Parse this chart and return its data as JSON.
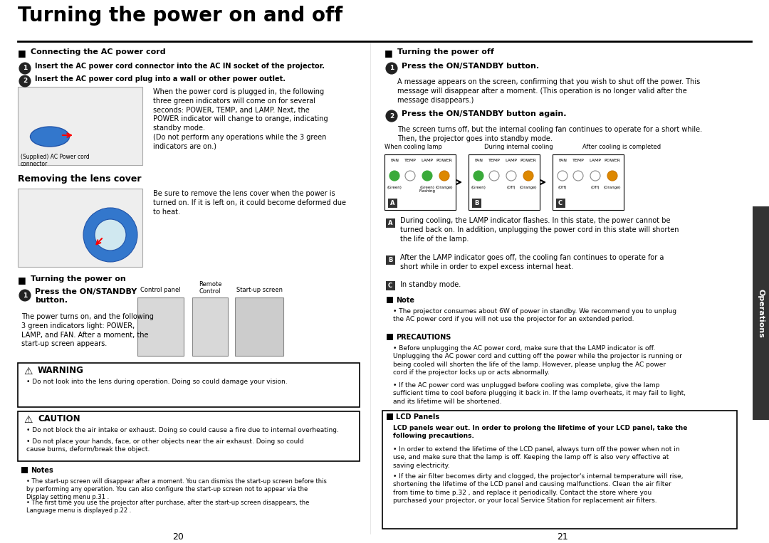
{
  "title": "Turning the power on and off",
  "bg_color": "#ffffff",
  "text_color": "#000000",
  "sections": {
    "connecting_header": "Connecting the AC power cord",
    "connecting_step1": "Insert the AC power cord connector into the AC IN socket of the projector.",
    "connecting_step2": "Insert the AC power cord plug into a wall or other power outlet.",
    "connecting_body": "When the power cord is plugged in, the following\nthree green indicators will come on for several\nseconds: POWER, TEMP, and LAMP. Next, the\nPOWER indicator will change to orange, indicating\nstandby mode.\n(Do not perform any operations while the 3 green\nindicators are on.)",
    "supplied_caption": "(Supplied) AC Power cord\nconnector",
    "lens_header": "Removing the lens cover",
    "lens_body": "Be sure to remove the lens cover when the power is\nturned on. If it is left on, it could become deformed due\nto heat.",
    "power_on_header": "Turning the power on",
    "power_on_step": "Press the ON/STANDBY\nbutton.",
    "power_on_body": "The power turns on, and the following\n3 green indicators light: POWER,\nLAMP, and FAN. After a moment, the\nstart-up screen appears.",
    "control_panel_label": "Control panel",
    "remote_control_label": "Remote\nControl",
    "startup_screen_label": "Start-up screen",
    "warning_header": "WARNING",
    "warning_body": "Do not look into the lens during operation. Doing so could damage your vision.",
    "caution_header": "CAUTION",
    "caution_body1": "Do not block the air intake or exhaust. Doing so could cause a fire due to internal overheating.",
    "caution_body2": "Do not place your hands, face, or other objects near the air exhaust. Doing so could\ncause burns, deform/break the object.",
    "notes_header": "Notes",
    "notes_body1": "The start-up screen will disappear after a moment. You can dismiss the start-up screen before this\nby performing any operation. You can also configure the start-up screen not to appear via the\nDisplay setting menu p.31 .",
    "notes_body2": "The first time you use the projector after purchase, after the start-up screen disappears, the\nLanguage menu is displayed p.22 .",
    "page_left": "20",
    "page_right": "21",
    "power_off_header": "Turning the power off",
    "power_off_step1": "Press the ON/STANDBY button.",
    "power_off_step1_body": "A message appears on the screen, confirming that you wish to shut off the power. This\nmessage will disappear after a moment. (This operation is no longer valid after the\nmessage disappears.)",
    "power_off_step2": "Press the ON/STANDBY button again.",
    "power_off_step2_body": "The screen turns off, but the internal cooling fan continues to operate for a short while.\nThen, the projector goes into standby mode.",
    "indicator_a_label": "When cooling lamp",
    "indicator_b_label": "During internal cooling",
    "indicator_c_label": "After cooling is completed",
    "indicator_note_a": "During cooling, the LAMP indicator flashes. In this state, the power cannot be\nturned back on. In addition, unplugging the power cord in this state will shorten\nthe life of the lamp.",
    "indicator_note_b": "After the LAMP indicator goes off, the cooling fan continues to operate for a\nshort while in order to expel excess internal heat.",
    "indicator_note_c": "In standby mode.",
    "note_header": "Note",
    "note_body": "The projector consumes about 6W of power in standby. We recommend you to unplug\nthe AC power cord if you will not use the projector for an extended period.",
    "precautions_header": "PRECAUTIONS",
    "precautions_body1": "Before unplugging the AC power cord, make sure that the LAMP indicator is off.\nUnplugging the AC power cord and cutting off the power while the projector is running or\nbeing cooled will shorten the life of the lamp. However, please unplug the AC power\ncord if the projector locks up or acts abnormally.",
    "precautions_body2": "If the AC power cord was unplugged before cooling was complete, give the lamp\nsufficient time to cool before plugging it back in. If the lamp overheats, it may fail to light,\nand its lifetime will be shortened.",
    "lcd_header": "LCD Panels",
    "lcd_intro": "LCD panels wear out. In order to prolong the lifetime of your LCD panel, take the\nfollowing precautions.",
    "lcd_body1": "In order to extend the lifetime of the LCD panel, always turn off the power when not in\nuse, and make sure that the lamp is off. Keeping the lamp off is also very effective at\nsaving electricity.",
    "lcd_body2": "If the air filter becomes dirty and clogged, the projector's internal temperature will rise,\nshortening the lifetime of the LCD panel and causing malfunctions. Clean the air filter\nfrom time to time p.32 , and replace it periodically. Contact the store where you\npurchased your projector, or your local Service Station for replacement air filters.",
    "operations_tab_text": "Operations"
  }
}
